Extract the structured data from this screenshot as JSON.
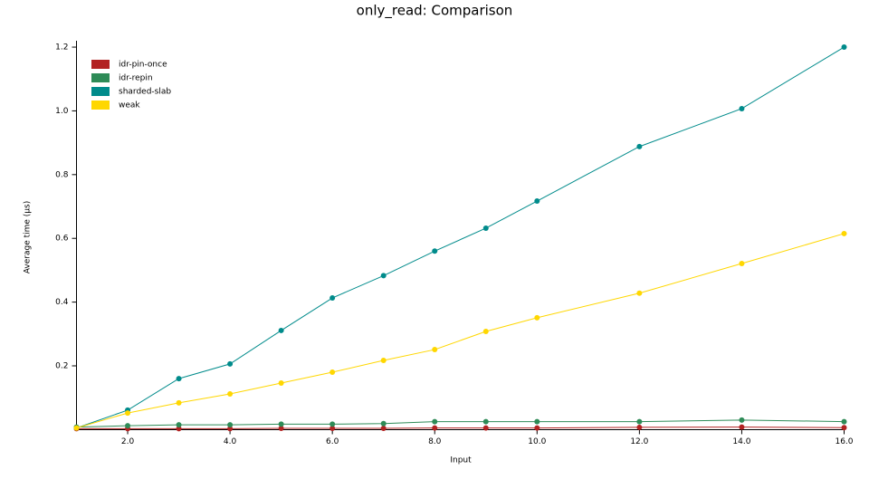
{
  "chart_data": {
    "type": "line",
    "title": "only_read: Comparison",
    "x_label": "Input",
    "y_label": "Average time (µs)",
    "x": [
      1,
      2,
      3,
      4,
      5,
      6,
      7,
      8,
      9,
      10,
      12,
      14,
      16
    ],
    "series": [
      {
        "name": "idr-pin-once",
        "color": "#b22222",
        "values": [
          0.003,
          0.003,
          0.003,
          0.003,
          0.004,
          0.004,
          0.004,
          0.005,
          0.005,
          0.005,
          0.007,
          0.008,
          0.006
        ]
      },
      {
        "name": "idr-repin",
        "color": "#2e8b57",
        "values": [
          0.008,
          0.012,
          0.015,
          0.015,
          0.017,
          0.017,
          0.019,
          0.025,
          0.025,
          0.025,
          0.025,
          0.03,
          0.025
        ]
      },
      {
        "name": "sharded-slab",
        "color": "#008b8b",
        "values": [
          0.005,
          0.061,
          0.16,
          0.206,
          0.311,
          0.413,
          0.483,
          0.56,
          0.632,
          0.717,
          0.888,
          1.007,
          1.2
        ]
      },
      {
        "name": "weak",
        "color": "#ffd700",
        "values": [
          0.005,
          0.052,
          0.084,
          0.112,
          0.146,
          0.18,
          0.217,
          0.251,
          0.308,
          0.351,
          0.428,
          0.521,
          0.615
        ]
      }
    ],
    "xlim": [
      1,
      16
    ],
    "xticks": [
      {
        "value": 2,
        "label": "2.0"
      },
      {
        "value": 4,
        "label": "4.0"
      },
      {
        "value": 6,
        "label": "6.0"
      },
      {
        "value": 8,
        "label": "8.0"
      },
      {
        "value": 10,
        "label": "10.0"
      },
      {
        "value": 12,
        "label": "12.0"
      },
      {
        "value": 14,
        "label": "14.0"
      },
      {
        "value": 16,
        "label": "16.0"
      }
    ],
    "ylim": [
      0,
      1.22
    ],
    "yticks": [
      0.2,
      0.4,
      0.6,
      0.8,
      {
        "value": 1,
        "label": "1.0"
      },
      1.2
    ],
    "grid": false,
    "legend": "top-left"
  }
}
